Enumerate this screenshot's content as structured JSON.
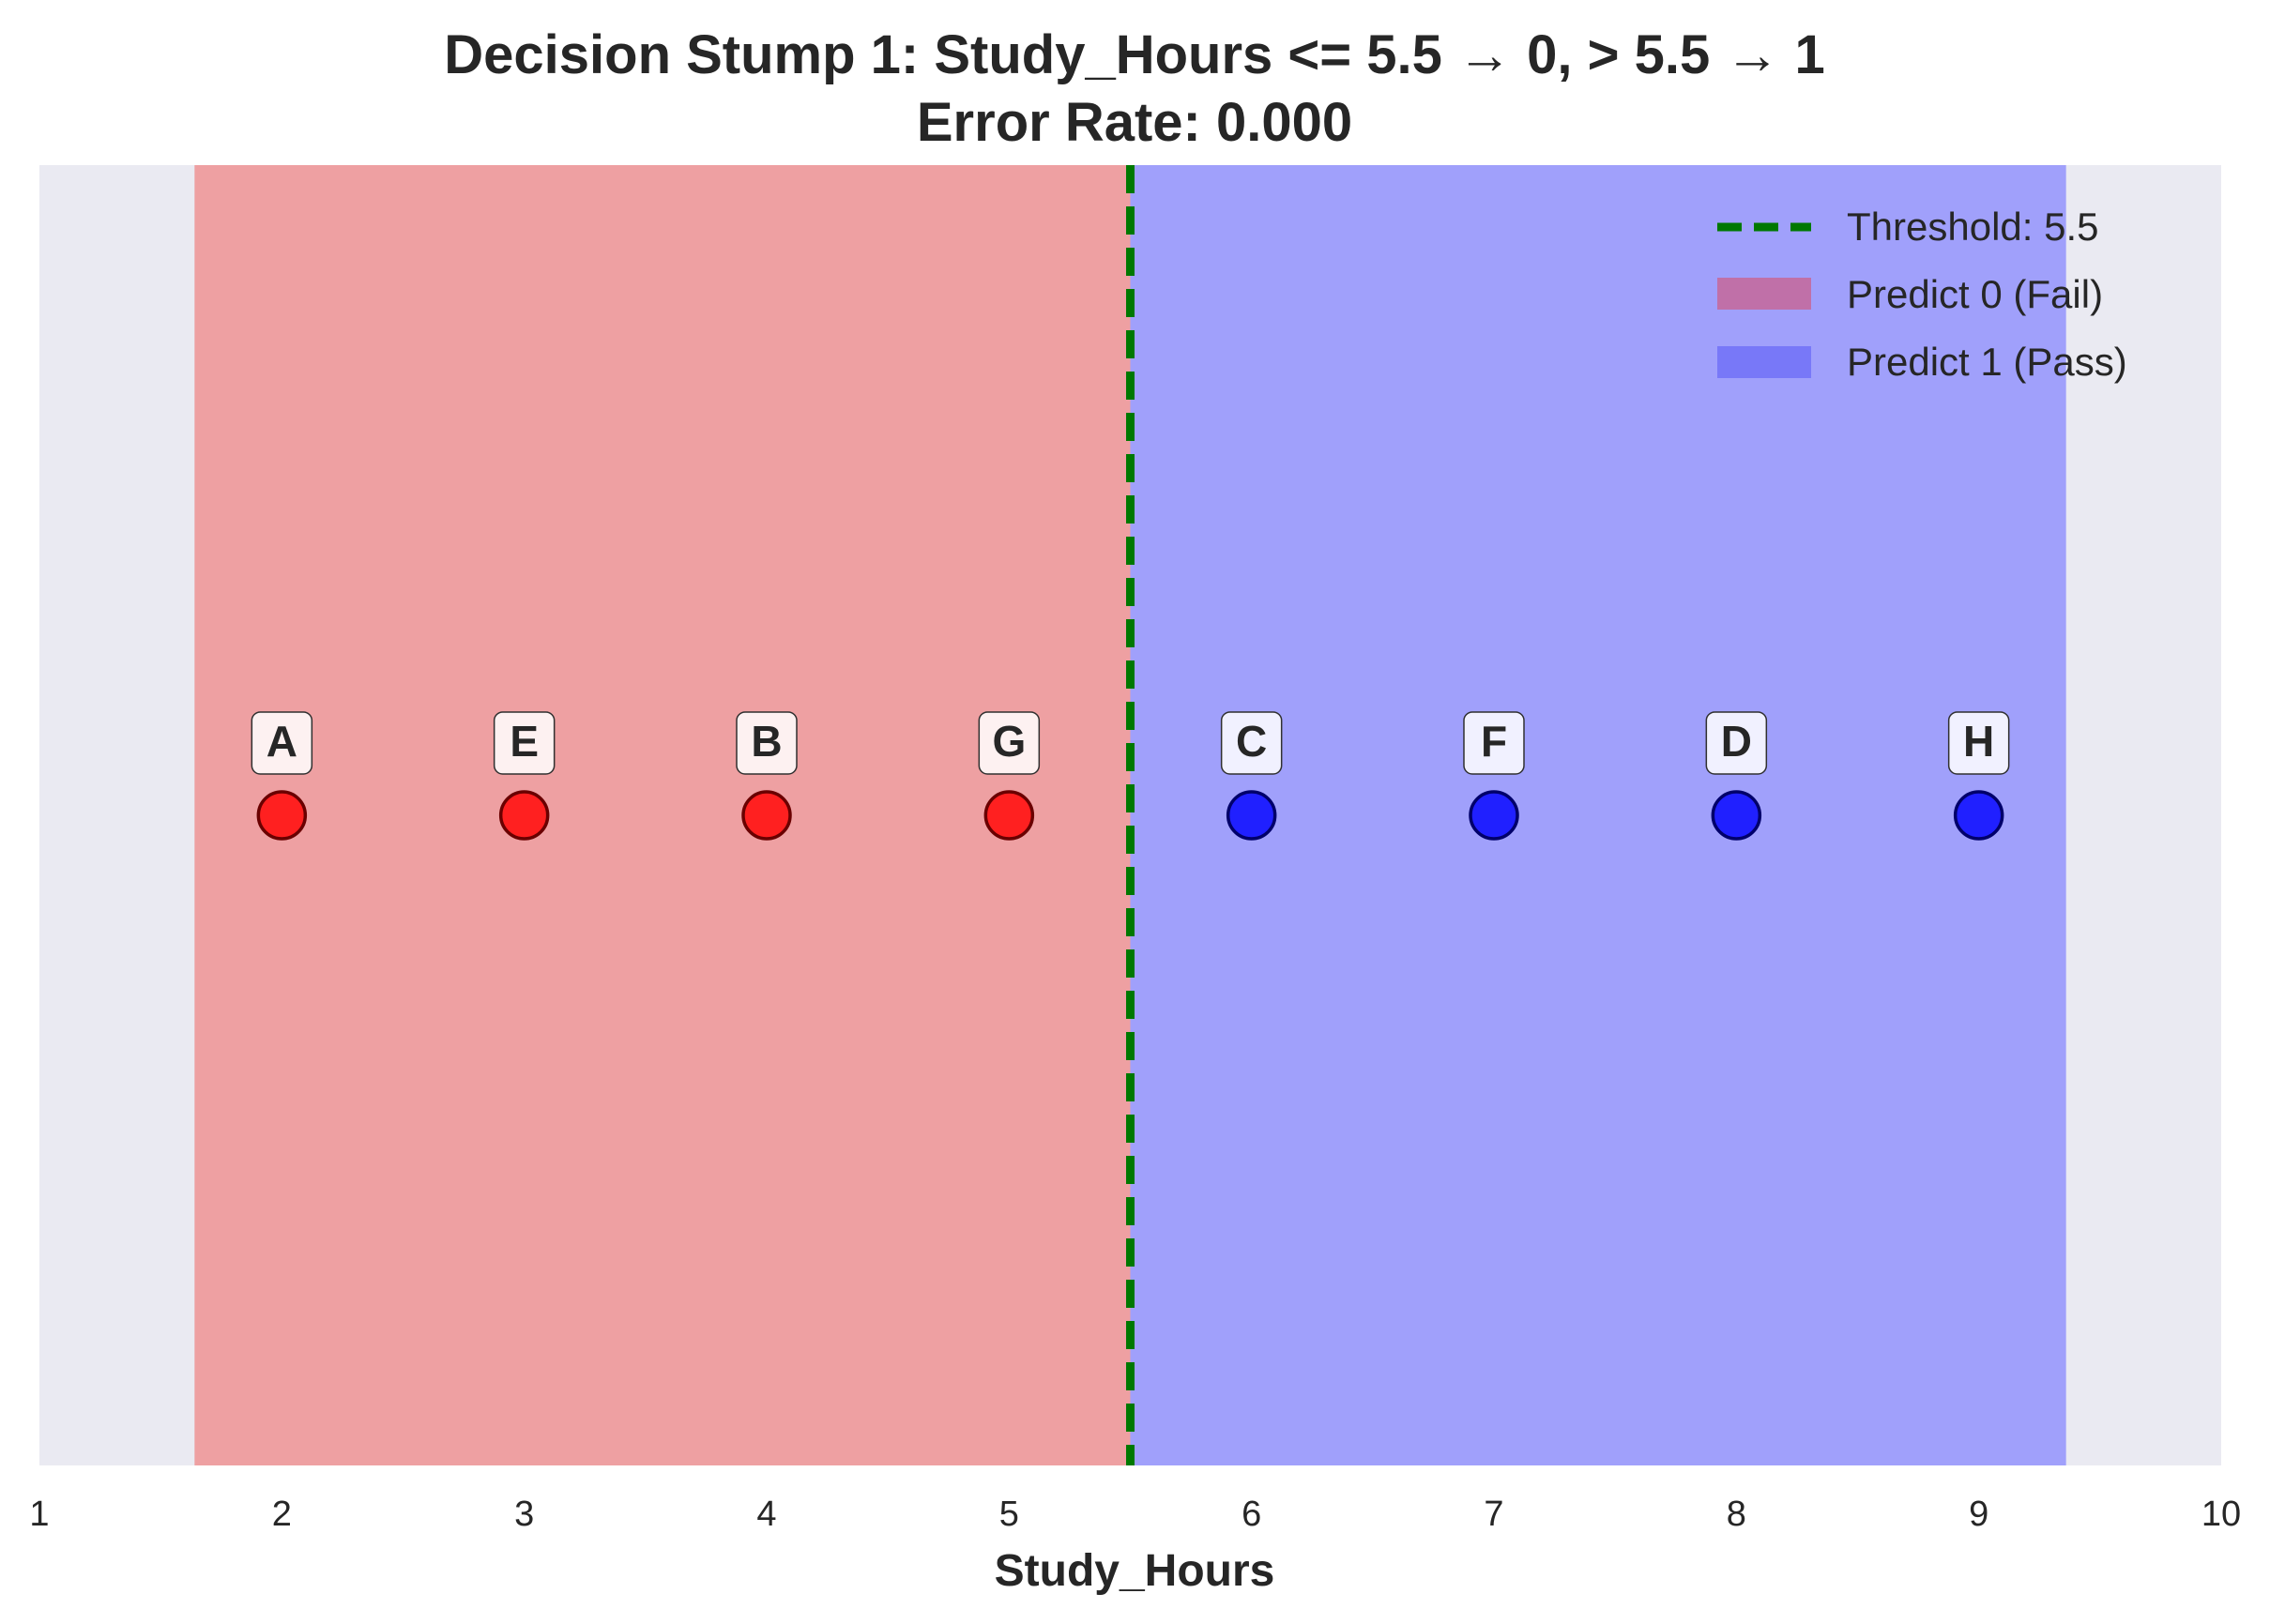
{
  "chart_data": {
    "type": "scatter",
    "title_line1": "Decision Stump 1: Study_Hours <= 5.5 → 0, > 5.5 → 1",
    "title_line2": "Error Rate: 0.000",
    "xlabel": "Study_Hours",
    "ylabel": "",
    "xlim": [
      1,
      10
    ],
    "ylim": [
      -1,
      1
    ],
    "x_ticks": [
      "1",
      "2",
      "3",
      "4",
      "5",
      "6",
      "7",
      "8",
      "9",
      "10"
    ],
    "x_tick_values": [
      1,
      2,
      3,
      4,
      5,
      6,
      7,
      8,
      9,
      10
    ],
    "threshold": 5.5,
    "regions": [
      {
        "name": "Predict 0 (Fail)",
        "x_from": 1.64,
        "x_to": 5.5,
        "color": "#f08080"
      },
      {
        "name": "Predict 1 (Pass)",
        "x_from": 5.5,
        "x_to": 9.36,
        "color": "#8080ff"
      }
    ],
    "points": [
      {
        "label": "A",
        "x": 2,
        "y": 0,
        "class": 0
      },
      {
        "label": "E",
        "x": 3,
        "y": 0,
        "class": 0
      },
      {
        "label": "B",
        "x": 4,
        "y": 0,
        "class": 0
      },
      {
        "label": "G",
        "x": 5,
        "y": 0,
        "class": 0
      },
      {
        "label": "C",
        "x": 6,
        "y": 0,
        "class": 1
      },
      {
        "label": "F",
        "x": 7,
        "y": 0,
        "class": 1
      },
      {
        "label": "D",
        "x": 8,
        "y": 0,
        "class": 1
      },
      {
        "label": "H",
        "x": 9,
        "y": 0,
        "class": 1
      }
    ],
    "colors": {
      "background": "#eaeaf2",
      "class0": "#ff2020",
      "class1": "#2020ff",
      "threshold_line": "#007800",
      "legend_fail": "#c070a8",
      "legend_pass": "#7878f8"
    },
    "legend": {
      "placement": "top-right",
      "entries": [
        "Threshold: 5.5",
        "Predict 0 (Fail)",
        "Predict 1 (Pass)"
      ]
    },
    "grid": false
  }
}
